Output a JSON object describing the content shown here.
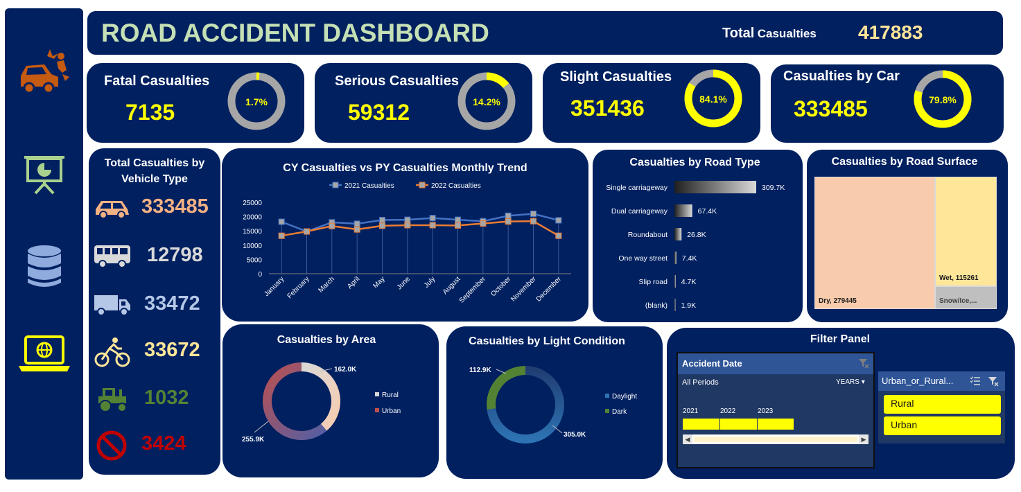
{
  "header": {
    "title": "ROAD ACCIDENT DASHBOARD",
    "total_label_big": "Total",
    "total_label_small": "Casualties",
    "total_value": "417883"
  },
  "kpis": [
    {
      "title": "Fatal Casualties",
      "value": "7135",
      "pct_label": "1.7%",
      "pct": 1.7
    },
    {
      "title": "Serious Casualties",
      "value": "59312",
      "pct_label": "14.2%",
      "pct": 14.2
    },
    {
      "title": "Slight Casualties",
      "value": "351436",
      "pct_label": "84.1%",
      "pct": 84.1
    },
    {
      "title": "Casualties by Car",
      "value": "333485",
      "pct_label": "79.8%",
      "pct": 79.8
    }
  ],
  "colors": {
    "panel": "#002060",
    "accent": "#ffff00",
    "ring_bg": "#a6a6a6",
    "title_green": "#c5e0b4"
  },
  "sidebar_icons": [
    "car-crash-icon",
    "presentation-chart-icon",
    "database-icon",
    "laptop-globe-icon"
  ],
  "vehicle": {
    "title_line1": "Total Casualties by",
    "title_line2": "Vehicle Type",
    "rows": [
      {
        "icon": "car-icon",
        "value": "333485",
        "color": "#f4b183"
      },
      {
        "icon": "bus-icon",
        "value": "12798",
        "color": "#d9d9d9"
      },
      {
        "icon": "truck-icon",
        "value": "33472",
        "color": "#b4c7e7"
      },
      {
        "icon": "bicycle-icon",
        "value": "33672",
        "color": "#ffe699"
      },
      {
        "icon": "tractor-icon",
        "value": "1032",
        "color": "#548235"
      },
      {
        "icon": "no-entry-icon",
        "value": "3424",
        "color": "#c00000"
      }
    ]
  },
  "chart_data": [
    {
      "type": "line",
      "title": "CY Casualties vs PY Casualties Monthly Trend",
      "categories": [
        "January",
        "February",
        "March",
        "April",
        "May",
        "June",
        "July",
        "August",
        "September",
        "October",
        "November",
        "December"
      ],
      "series": [
        {
          "name": "2021 Casualties",
          "color": "#4472c4",
          "values": [
            18200,
            14800,
            18000,
            17500,
            18800,
            18900,
            19500,
            18900,
            18400,
            20300,
            21000,
            18700
          ]
        },
        {
          "name": "2022 Casualties",
          "color": "#ed7d31",
          "values": [
            13300,
            14800,
            16700,
            15500,
            16800,
            17000,
            17000,
            16900,
            17600,
            18300,
            18400,
            13300
          ]
        }
      ],
      "ylim": [
        0,
        25000
      ],
      "yticks": [
        "0",
        "5000",
        "10000",
        "15000",
        "20000",
        "25000"
      ],
      "grid": true,
      "legend": "top"
    },
    {
      "type": "bar",
      "title": "Casualties by Road Type",
      "categories": [
        "Single carriageway",
        "Dual carriageway",
        "Roundabout",
        "One way street",
        "Slip road",
        "(blank)"
      ],
      "values": [
        309.7,
        67.4,
        26.8,
        7.4,
        4.7,
        1.9
      ],
      "labels": [
        "309.7K",
        "67.4K",
        "26.8K",
        "7.4K",
        "4.7K",
        "1.9K"
      ],
      "orientation": "horizontal"
    },
    {
      "type": "heatmap",
      "title": "Casualties by Road Surface",
      "items": [
        {
          "label": "Dry, 279445",
          "value": 279445,
          "color": "#f8cbad"
        },
        {
          "label": "Wet, 115261",
          "value": 115261,
          "color": "#ffe699"
        },
        {
          "label": "Snow/Ice,...",
          "value": 23177,
          "color": "#bfbfbf"
        }
      ]
    },
    {
      "type": "pie",
      "title": "Casualties by Area",
      "labels": [
        "Rural",
        "Urban"
      ],
      "values": [
        162.0,
        255.9
      ],
      "value_labels": [
        "162.0K",
        "255.9K"
      ],
      "legend": "right"
    },
    {
      "type": "pie",
      "title": "Casualties by Light Condition",
      "labels": [
        "Daylight",
        "Dark"
      ],
      "values": [
        305.0,
        112.9
      ],
      "value_labels": [
        "305.0K",
        "112.9K"
      ],
      "legend": "right"
    }
  ],
  "filter": {
    "title": "Filter Panel",
    "timeline": {
      "title": "Accident Date",
      "period": "All Periods",
      "unit": "YEARS",
      "years": [
        "2021",
        "2022",
        "2023"
      ]
    },
    "slicer": {
      "title": "Urban_or_Rural...",
      "items": [
        "Rural",
        "Urban"
      ]
    }
  }
}
